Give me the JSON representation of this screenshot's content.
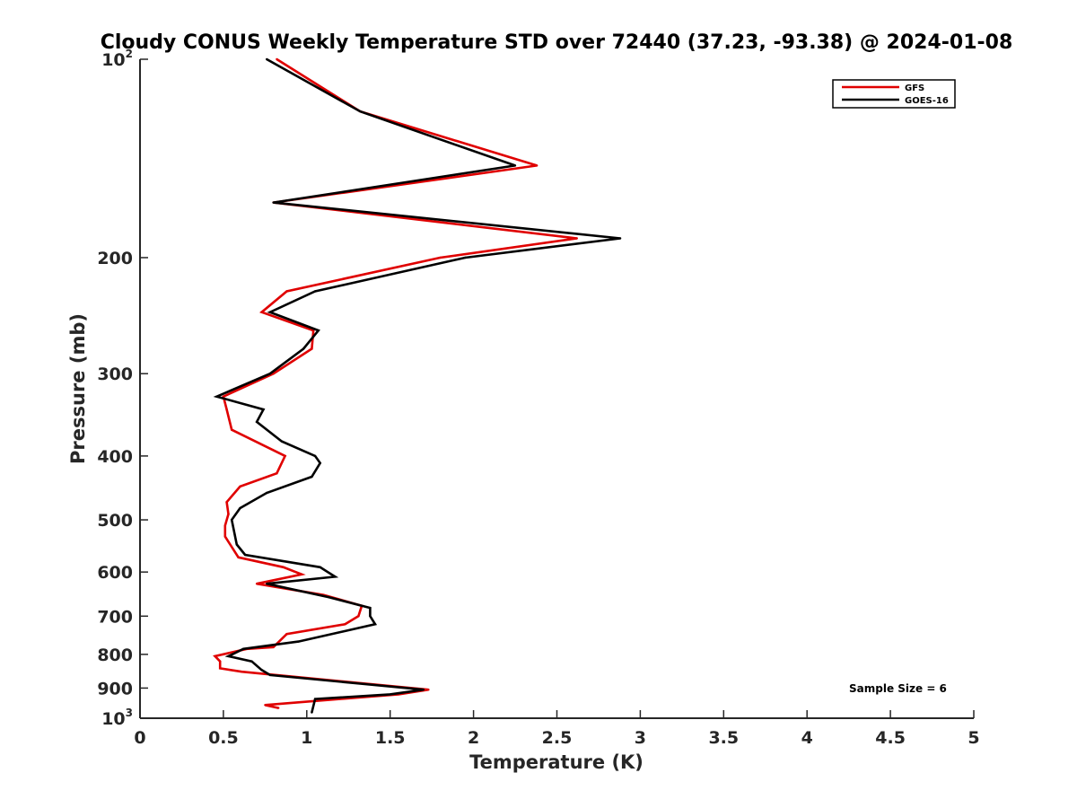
{
  "chart_data": {
    "type": "line",
    "title": "Cloudy CONUS Weekly Temperature STD over 72440 (37.23, -93.38) @ 2024-01-08",
    "xlabel": "Temperature (K)",
    "ylabel": "Pressure (mb)",
    "xlim": [
      0,
      5
    ],
    "ylim": [
      100,
      1000
    ],
    "y_scale": "log",
    "y_reversed": true,
    "x_ticks": [
      "0",
      "0.5",
      "1",
      "1.5",
      "2",
      "2.5",
      "3",
      "3.5",
      "4",
      "4.5",
      "5"
    ],
    "y_ticks": [
      {
        "value": 100,
        "base": "10",
        "exp": "2"
      },
      {
        "value": 200,
        "label": "200"
      },
      {
        "value": 300,
        "label": "300"
      },
      {
        "value": 400,
        "label": "400"
      },
      {
        "value": 500,
        "label": "500"
      },
      {
        "value": 600,
        "label": "600"
      },
      {
        "value": 700,
        "label": "700"
      },
      {
        "value": 800,
        "label": "800"
      },
      {
        "value": 900,
        "label": "900"
      },
      {
        "value": 1000,
        "base": "10",
        "exp": "3"
      }
    ],
    "grid": false,
    "legend_position": "top-right",
    "annotation": "Sample Size = 6",
    "series": [
      {
        "name": "GFS",
        "color": "#e00000",
        "points": [
          {
            "x": 0.82,
            "y": 100
          },
          {
            "x": 1.32,
            "y": 120
          },
          {
            "x": 2.38,
            "y": 145
          },
          {
            "x": 0.8,
            "y": 165
          },
          {
            "x": 2.62,
            "y": 187
          },
          {
            "x": 1.8,
            "y": 200
          },
          {
            "x": 0.88,
            "y": 225
          },
          {
            "x": 0.73,
            "y": 242
          },
          {
            "x": 1.04,
            "y": 258
          },
          {
            "x": 1.03,
            "y": 275
          },
          {
            "x": 0.8,
            "y": 300
          },
          {
            "x": 0.5,
            "y": 325
          },
          {
            "x": 0.52,
            "y": 340
          },
          {
            "x": 0.55,
            "y": 365
          },
          {
            "x": 0.87,
            "y": 400
          },
          {
            "x": 0.82,
            "y": 425
          },
          {
            "x": 0.6,
            "y": 445
          },
          {
            "x": 0.52,
            "y": 470
          },
          {
            "x": 0.53,
            "y": 490
          },
          {
            "x": 0.51,
            "y": 510
          },
          {
            "x": 0.51,
            "y": 530
          },
          {
            "x": 0.59,
            "y": 570
          },
          {
            "x": 0.86,
            "y": 590
          },
          {
            "x": 0.97,
            "y": 605
          },
          {
            "x": 0.7,
            "y": 625
          },
          {
            "x": 1.1,
            "y": 650
          },
          {
            "x": 1.33,
            "y": 675
          },
          {
            "x": 1.31,
            "y": 700
          },
          {
            "x": 1.23,
            "y": 720
          },
          {
            "x": 0.88,
            "y": 745
          },
          {
            "x": 0.8,
            "y": 780
          },
          {
            "x": 0.64,
            "y": 785
          },
          {
            "x": 0.45,
            "y": 805
          },
          {
            "x": 0.48,
            "y": 820
          },
          {
            "x": 0.48,
            "y": 840
          },
          {
            "x": 0.61,
            "y": 850
          },
          {
            "x": 1.73,
            "y": 905
          },
          {
            "x": 1.55,
            "y": 920
          },
          {
            "x": 0.75,
            "y": 955
          },
          {
            "x": 0.83,
            "y": 965
          }
        ]
      },
      {
        "name": "GOES-16",
        "color": "#000000",
        "points": [
          {
            "x": 0.76,
            "y": 100
          },
          {
            "x": 1.32,
            "y": 120
          },
          {
            "x": 2.25,
            "y": 145
          },
          {
            "x": 0.8,
            "y": 165
          },
          {
            "x": 2.88,
            "y": 187
          },
          {
            "x": 1.95,
            "y": 200
          },
          {
            "x": 1.05,
            "y": 225
          },
          {
            "x": 0.78,
            "y": 242
          },
          {
            "x": 1.07,
            "y": 258
          },
          {
            "x": 0.98,
            "y": 275
          },
          {
            "x": 0.78,
            "y": 300
          },
          {
            "x": 0.46,
            "y": 325
          },
          {
            "x": 0.74,
            "y": 340
          },
          {
            "x": 0.7,
            "y": 355
          },
          {
            "x": 0.85,
            "y": 380
          },
          {
            "x": 1.05,
            "y": 400
          },
          {
            "x": 1.08,
            "y": 410
          },
          {
            "x": 1.03,
            "y": 430
          },
          {
            "x": 0.76,
            "y": 455
          },
          {
            "x": 0.6,
            "y": 480
          },
          {
            "x": 0.55,
            "y": 500
          },
          {
            "x": 0.58,
            "y": 545
          },
          {
            "x": 0.63,
            "y": 565
          },
          {
            "x": 1.08,
            "y": 590
          },
          {
            "x": 1.17,
            "y": 610
          },
          {
            "x": 0.76,
            "y": 625
          },
          {
            "x": 1.13,
            "y": 655
          },
          {
            "x": 1.38,
            "y": 680
          },
          {
            "x": 1.38,
            "y": 700
          },
          {
            "x": 1.41,
            "y": 720
          },
          {
            "x": 0.95,
            "y": 765
          },
          {
            "x": 0.62,
            "y": 785
          },
          {
            "x": 0.53,
            "y": 805
          },
          {
            "x": 0.67,
            "y": 820
          },
          {
            "x": 0.73,
            "y": 845
          },
          {
            "x": 0.78,
            "y": 860
          },
          {
            "x": 1.7,
            "y": 905
          },
          {
            "x": 1.5,
            "y": 920
          },
          {
            "x": 1.05,
            "y": 935
          },
          {
            "x": 1.03,
            "y": 980
          }
        ]
      }
    ]
  }
}
